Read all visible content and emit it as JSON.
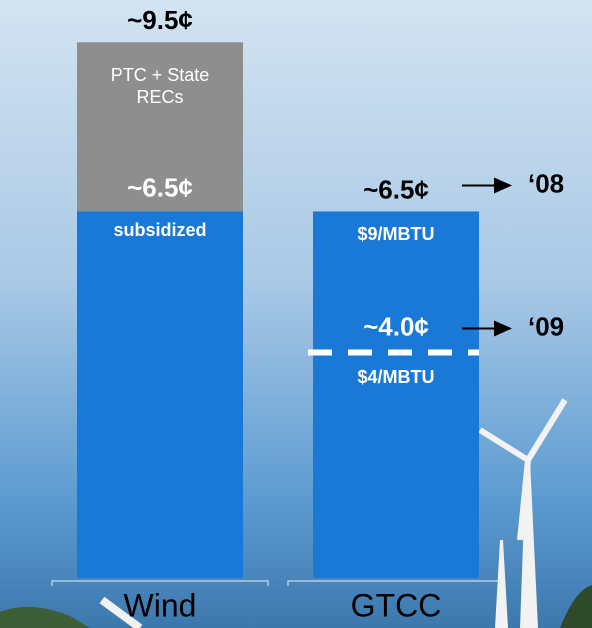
{
  "chart_data": {
    "type": "bar",
    "ylim": [
      0,
      10.25
    ],
    "bars": [
      {
        "category": "Wind",
        "total": 9.5,
        "total_label": "~9.5¢",
        "segments": [
          {
            "label": "subsidized",
            "value": 6.5,
            "value_label": "~6.5¢",
            "color": "#1a78d6"
          },
          {
            "label": "PTC + State RECs",
            "value": 3.0,
            "color": "#8e8e8e"
          }
        ]
      },
      {
        "category": "GTCC",
        "segments": [
          {
            "label": "$9/MBTU",
            "value": 6.5,
            "value_label": "~6.5¢",
            "color": "#1a78d6",
            "year": "‘08"
          }
        ],
        "markers": [
          {
            "label": "$4/MBTU",
            "value": 4.0,
            "value_label": "~4.0¢",
            "year": "‘09"
          }
        ]
      }
    ]
  }
}
